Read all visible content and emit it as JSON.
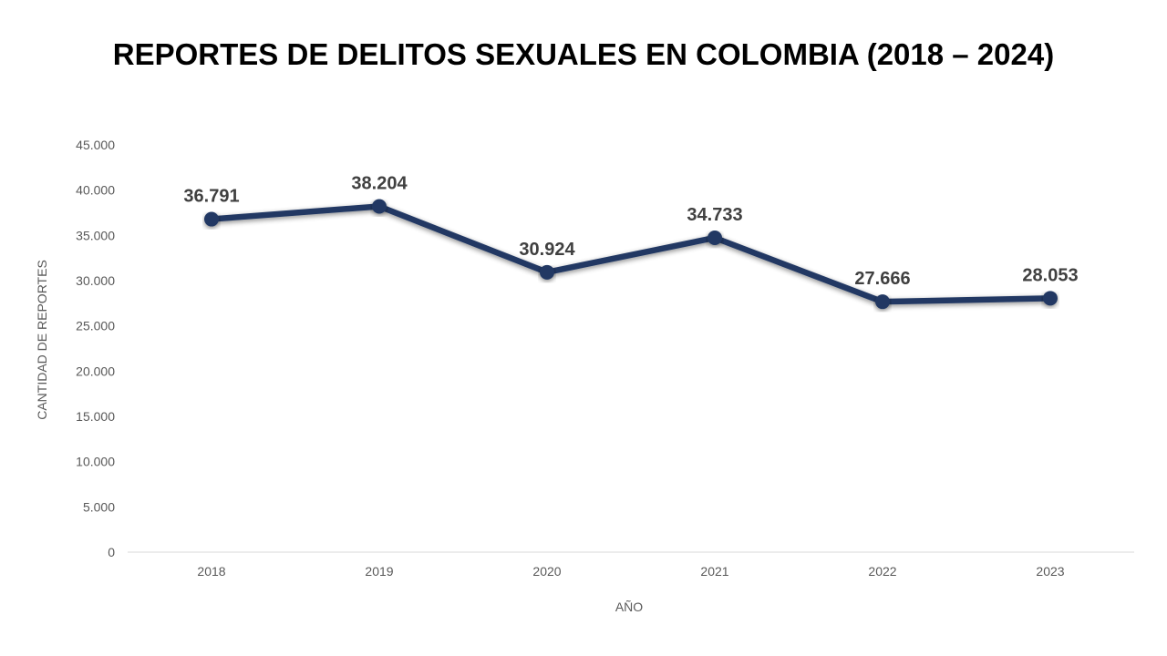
{
  "chart_data": {
    "type": "line",
    "title": "REPORTES DE DELITOS SEXUALES EN COLOMBIA (2018 – 2024)",
    "xlabel": "AÑO",
    "ylabel": "CANTIDAD DE REPORTES",
    "categories": [
      "2018",
      "2019",
      "2020",
      "2021",
      "2022",
      "2023"
    ],
    "series": [
      {
        "values": [
          36791,
          38204,
          30924,
          34733,
          27666,
          28053
        ],
        "data_labels": [
          "36.791",
          "38.204",
          "30.924",
          "34.733",
          "27.666",
          "28.053"
        ],
        "color": "#203864"
      }
    ],
    "ylim": [
      0,
      45000
    ],
    "yticks": [
      0,
      5000,
      10000,
      15000,
      20000,
      25000,
      30000,
      35000,
      40000,
      45000
    ],
    "ytick_labels": [
      "0",
      "5.000",
      "10.000",
      "15.000",
      "20.000",
      "25.000",
      "30.000",
      "35.000",
      "40.000",
      "45.000"
    ],
    "grid": false,
    "legend": "none"
  }
}
